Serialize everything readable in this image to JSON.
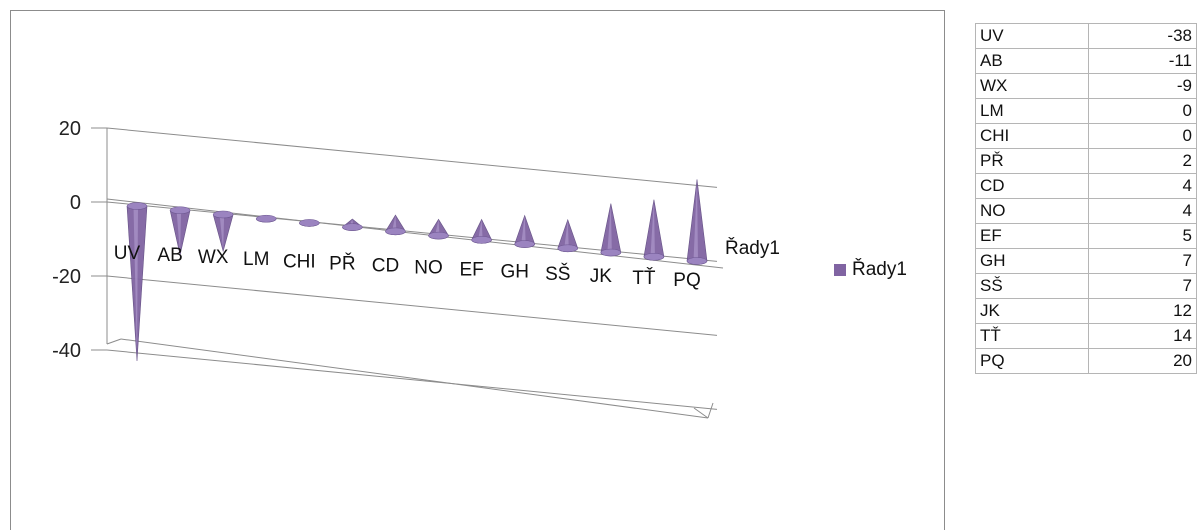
{
  "chart_data": {
    "type": "bar",
    "categories": [
      "UV",
      "AB",
      "WX",
      "LM",
      "CHI",
      "PŘ",
      "CD",
      "NO",
      "EF",
      "GH",
      "SŠ",
      "JK",
      "TŤ",
      "PQ"
    ],
    "series": [
      {
        "name": "Řady1",
        "values": [
          -38,
          -11,
          -9,
          0,
          0,
          2,
          4,
          4,
          5,
          7,
          7,
          12,
          14,
          20
        ],
        "color": "#8064a2"
      }
    ],
    "y_ticks": [
      "20",
      "0",
      "-20",
      "-40"
    ],
    "ylim": [
      -40,
      20
    ],
    "bar_shape": "cone",
    "grid": true,
    "legend_position": "right"
  },
  "table": {
    "rows": [
      {
        "label": "UV",
        "value": "-38"
      },
      {
        "label": "AB",
        "value": "-11"
      },
      {
        "label": "WX",
        "value": "-9"
      },
      {
        "label": "LM",
        "value": "0"
      },
      {
        "label": "CHI",
        "value": "0"
      },
      {
        "label": "PŘ",
        "value": "2"
      },
      {
        "label": "CD",
        "value": "4"
      },
      {
        "label": "NO",
        "value": "4"
      },
      {
        "label": "EF",
        "value": "5"
      },
      {
        "label": "GH",
        "value": "7"
      },
      {
        "label": "SŠ",
        "value": "7"
      },
      {
        "label": "JK",
        "value": "12"
      },
      {
        "label": "TŤ",
        "value": "14"
      },
      {
        "label": "PQ",
        "value": "20"
      }
    ]
  }
}
